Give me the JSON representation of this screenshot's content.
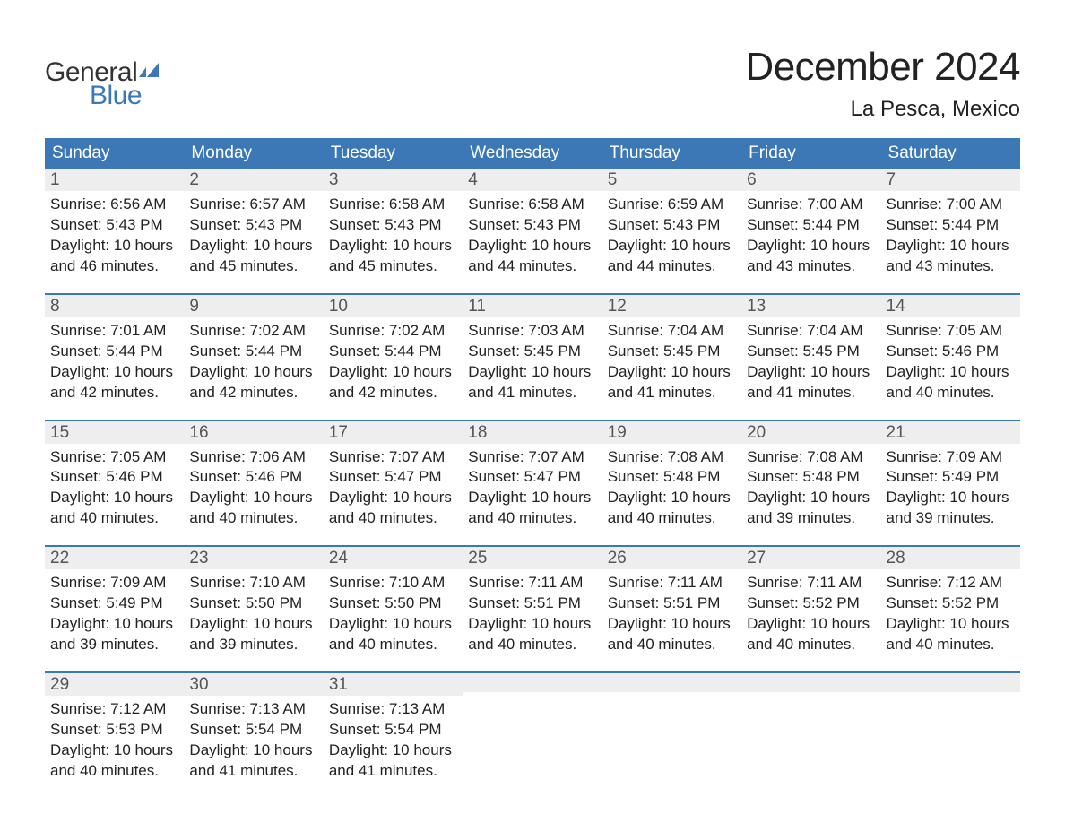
{
  "brand": {
    "text_general": "General",
    "text_blue": "Blue",
    "flag_color": "#3b78b5",
    "text_color_general": "#333333",
    "text_color_blue": "#3b78b5"
  },
  "title": "December 2024",
  "location": "La Pesca, Mexico",
  "colors": {
    "header_bg": "#3b78b5",
    "header_text": "#ffffff",
    "daynum_bg": "#eeeeee",
    "daynum_text": "#555555",
    "body_text": "#222222",
    "week_border": "#3b78b5",
    "page_bg": "#ffffff"
  },
  "typography": {
    "title_fontsize": 44,
    "location_fontsize": 24,
    "dow_fontsize": 19,
    "daynum_fontsize": 19,
    "body_fontsize": 17
  },
  "days_of_week": [
    "Sunday",
    "Monday",
    "Tuesday",
    "Wednesday",
    "Thursday",
    "Friday",
    "Saturday"
  ],
  "labels": {
    "sunrise": "Sunrise:",
    "sunset": "Sunset:",
    "daylight": "Daylight:"
  },
  "weeks": [
    [
      {
        "num": "1",
        "sunrise": "6:56 AM",
        "sunset": "5:43 PM",
        "daylight_l1": "10 hours",
        "daylight_l2": "and 46 minutes."
      },
      {
        "num": "2",
        "sunrise": "6:57 AM",
        "sunset": "5:43 PM",
        "daylight_l1": "10 hours",
        "daylight_l2": "and 45 minutes."
      },
      {
        "num": "3",
        "sunrise": "6:58 AM",
        "sunset": "5:43 PM",
        "daylight_l1": "10 hours",
        "daylight_l2": "and 45 minutes."
      },
      {
        "num": "4",
        "sunrise": "6:58 AM",
        "sunset": "5:43 PM",
        "daylight_l1": "10 hours",
        "daylight_l2": "and 44 minutes."
      },
      {
        "num": "5",
        "sunrise": "6:59 AM",
        "sunset": "5:43 PM",
        "daylight_l1": "10 hours",
        "daylight_l2": "and 44 minutes."
      },
      {
        "num": "6",
        "sunrise": "7:00 AM",
        "sunset": "5:44 PM",
        "daylight_l1": "10 hours",
        "daylight_l2": "and 43 minutes."
      },
      {
        "num": "7",
        "sunrise": "7:00 AM",
        "sunset": "5:44 PM",
        "daylight_l1": "10 hours",
        "daylight_l2": "and 43 minutes."
      }
    ],
    [
      {
        "num": "8",
        "sunrise": "7:01 AM",
        "sunset": "5:44 PM",
        "daylight_l1": "10 hours",
        "daylight_l2": "and 42 minutes."
      },
      {
        "num": "9",
        "sunrise": "7:02 AM",
        "sunset": "5:44 PM",
        "daylight_l1": "10 hours",
        "daylight_l2": "and 42 minutes."
      },
      {
        "num": "10",
        "sunrise": "7:02 AM",
        "sunset": "5:44 PM",
        "daylight_l1": "10 hours",
        "daylight_l2": "and 42 minutes."
      },
      {
        "num": "11",
        "sunrise": "7:03 AM",
        "sunset": "5:45 PM",
        "daylight_l1": "10 hours",
        "daylight_l2": "and 41 minutes."
      },
      {
        "num": "12",
        "sunrise": "7:04 AM",
        "sunset": "5:45 PM",
        "daylight_l1": "10 hours",
        "daylight_l2": "and 41 minutes."
      },
      {
        "num": "13",
        "sunrise": "7:04 AM",
        "sunset": "5:45 PM",
        "daylight_l1": "10 hours",
        "daylight_l2": "and 41 minutes."
      },
      {
        "num": "14",
        "sunrise": "7:05 AM",
        "sunset": "5:46 PM",
        "daylight_l1": "10 hours",
        "daylight_l2": "and 40 minutes."
      }
    ],
    [
      {
        "num": "15",
        "sunrise": "7:05 AM",
        "sunset": "5:46 PM",
        "daylight_l1": "10 hours",
        "daylight_l2": "and 40 minutes."
      },
      {
        "num": "16",
        "sunrise": "7:06 AM",
        "sunset": "5:46 PM",
        "daylight_l1": "10 hours",
        "daylight_l2": "and 40 minutes."
      },
      {
        "num": "17",
        "sunrise": "7:07 AM",
        "sunset": "5:47 PM",
        "daylight_l1": "10 hours",
        "daylight_l2": "and 40 minutes."
      },
      {
        "num": "18",
        "sunrise": "7:07 AM",
        "sunset": "5:47 PM",
        "daylight_l1": "10 hours",
        "daylight_l2": "and 40 minutes."
      },
      {
        "num": "19",
        "sunrise": "7:08 AM",
        "sunset": "5:48 PM",
        "daylight_l1": "10 hours",
        "daylight_l2": "and 40 minutes."
      },
      {
        "num": "20",
        "sunrise": "7:08 AM",
        "sunset": "5:48 PM",
        "daylight_l1": "10 hours",
        "daylight_l2": "and 39 minutes."
      },
      {
        "num": "21",
        "sunrise": "7:09 AM",
        "sunset": "5:49 PM",
        "daylight_l1": "10 hours",
        "daylight_l2": "and 39 minutes."
      }
    ],
    [
      {
        "num": "22",
        "sunrise": "7:09 AM",
        "sunset": "5:49 PM",
        "daylight_l1": "10 hours",
        "daylight_l2": "and 39 minutes."
      },
      {
        "num": "23",
        "sunrise": "7:10 AM",
        "sunset": "5:50 PM",
        "daylight_l1": "10 hours",
        "daylight_l2": "and 39 minutes."
      },
      {
        "num": "24",
        "sunrise": "7:10 AM",
        "sunset": "5:50 PM",
        "daylight_l1": "10 hours",
        "daylight_l2": "and 40 minutes."
      },
      {
        "num": "25",
        "sunrise": "7:11 AM",
        "sunset": "5:51 PM",
        "daylight_l1": "10 hours",
        "daylight_l2": "and 40 minutes."
      },
      {
        "num": "26",
        "sunrise": "7:11 AM",
        "sunset": "5:51 PM",
        "daylight_l1": "10 hours",
        "daylight_l2": "and 40 minutes."
      },
      {
        "num": "27",
        "sunrise": "7:11 AM",
        "sunset": "5:52 PM",
        "daylight_l1": "10 hours",
        "daylight_l2": "and 40 minutes."
      },
      {
        "num": "28",
        "sunrise": "7:12 AM",
        "sunset": "5:52 PM",
        "daylight_l1": "10 hours",
        "daylight_l2": "and 40 minutes."
      }
    ],
    [
      {
        "num": "29",
        "sunrise": "7:12 AM",
        "sunset": "5:53 PM",
        "daylight_l1": "10 hours",
        "daylight_l2": "and 40 minutes."
      },
      {
        "num": "30",
        "sunrise": "7:13 AM",
        "sunset": "5:54 PM",
        "daylight_l1": "10 hours",
        "daylight_l2": "and 41 minutes."
      },
      {
        "num": "31",
        "sunrise": "7:13 AM",
        "sunset": "5:54 PM",
        "daylight_l1": "10 hours",
        "daylight_l2": "and 41 minutes."
      },
      null,
      null,
      null,
      null
    ]
  ]
}
